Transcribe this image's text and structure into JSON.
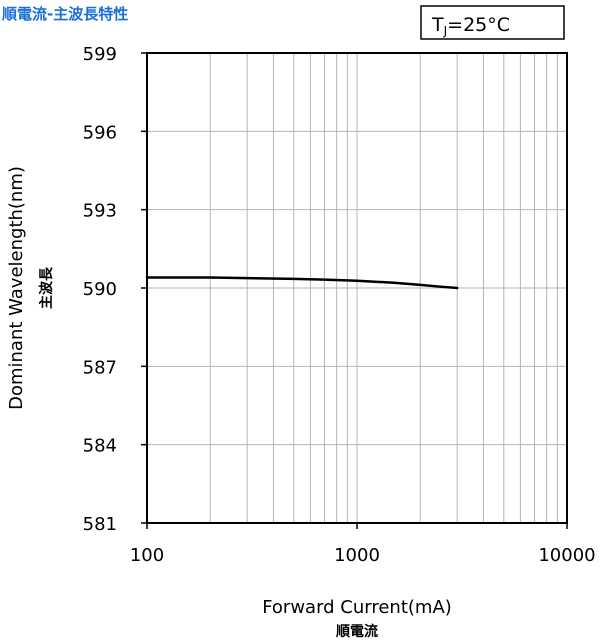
{
  "colors": {
    "title": "#1a6fd8",
    "frame": "#000000",
    "grid": "#b4b4b4",
    "line": "#000000",
    "background": "#ffffff"
  },
  "chart_data": {
    "type": "line",
    "title": "順電流-主波長特性",
    "annotation": {
      "prefix": "T",
      "subscript": "J",
      "suffix": "=25°C"
    },
    "xlabel": "Forward Current(mA)",
    "xlabel_sub": "順電流",
    "ylabel": "Dominant Wavelength(nm)",
    "ylabel_sub": "主波長",
    "x_scale": "log",
    "xlim": [
      100,
      10000
    ],
    "ylim": [
      581,
      599
    ],
    "x_ticks": [
      100,
      1000,
      10000
    ],
    "x_tick_labels": [
      "100",
      "1000",
      "10000"
    ],
    "y_ticks": [
      581,
      584,
      587,
      590,
      593,
      596,
      599
    ],
    "y_tick_labels": [
      "581",
      "584",
      "587",
      "590",
      "593",
      "596",
      "599"
    ],
    "grid": true,
    "legend": "none",
    "series": [
      {
        "x": [
          100,
          200,
          300,
          500,
          700,
          1000,
          1500,
          2000,
          2500,
          3000
        ],
        "y": [
          590.4,
          590.4,
          590.38,
          590.35,
          590.32,
          590.28,
          590.2,
          590.12,
          590.05,
          590.0
        ]
      }
    ]
  }
}
